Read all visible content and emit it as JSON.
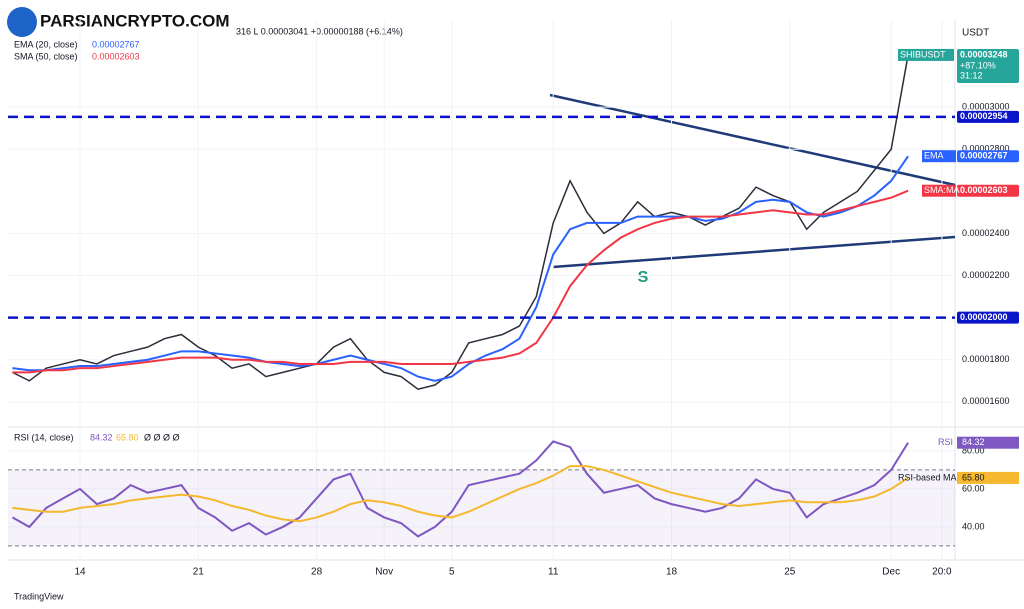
{
  "header": {
    "watermark": "PARSIANCRYPTO.COM",
    "ohlc": "316  L 0.00003041  +0.00000188 (+6.14%)",
    "currency": "USDT",
    "footer": "TradingView",
    "annotation": "S"
  },
  "legend": {
    "rsi_extra": "Ø  Ø  Ø  Ø"
  },
  "chart_data": [
    {
      "type": "line",
      "title": "SHIBUSDT",
      "categories": [
        null,
        null,
        null,
        null,
        "14",
        null,
        null,
        null,
        null,
        null,
        null,
        "21",
        null,
        null,
        null,
        null,
        null,
        null,
        "28",
        null,
        null,
        null,
        "Nov",
        null,
        null,
        null,
        "5",
        null,
        null,
        null,
        null,
        null,
        "11",
        null,
        null,
        null,
        null,
        null,
        null,
        "18",
        null,
        null,
        null,
        null,
        null,
        null,
        "25",
        null,
        null,
        null,
        null,
        null,
        "Dec",
        null,
        null,
        "20:0"
      ],
      "series": [
        {
          "name": "SHIBUSDT",
          "color": "#2a2e39",
          "values": [
            1.74e-05,
            1.7e-05,
            1.76e-05,
            1.78e-05,
            1.8e-05,
            1.78e-05,
            1.82e-05,
            1.84e-05,
            1.86e-05,
            1.9e-05,
            1.92e-05,
            1.86e-05,
            1.82e-05,
            1.76e-05,
            1.78e-05,
            1.72e-05,
            1.74e-05,
            1.76e-05,
            1.78e-05,
            1.86e-05,
            1.9e-05,
            1.8e-05,
            1.74e-05,
            1.72e-05,
            1.66e-05,
            1.68e-05,
            1.74e-05,
            1.88e-05,
            1.9e-05,
            1.92e-05,
            1.96e-05,
            2.1e-05,
            2.45e-05,
            2.65e-05,
            2.5e-05,
            2.4e-05,
            2.45e-05,
            2.55e-05,
            2.48e-05,
            2.5e-05,
            2.48e-05,
            2.44e-05,
            2.48e-05,
            2.52e-05,
            2.62e-05,
            2.58e-05,
            2.55e-05,
            2.42e-05,
            2.5e-05,
            2.55e-05,
            2.6e-05,
            2.7e-05,
            2.8e-05,
            3.248e-05,
            null,
            null
          ]
        },
        {
          "name": "EMA (20, close)",
          "color": "#2962ff",
          "values": [
            1.76e-05,
            1.75e-05,
            1.75e-05,
            1.76e-05,
            1.77e-05,
            1.77e-05,
            1.78e-05,
            1.79e-05,
            1.8e-05,
            1.82e-05,
            1.84e-05,
            1.84e-05,
            1.83e-05,
            1.82e-05,
            1.81e-05,
            1.79e-05,
            1.78e-05,
            1.77e-05,
            1.78e-05,
            1.8e-05,
            1.82e-05,
            1.8e-05,
            1.78e-05,
            1.76e-05,
            1.72e-05,
            1.7e-05,
            1.72e-05,
            1.78e-05,
            1.82e-05,
            1.85e-05,
            1.9e-05,
            2.05e-05,
            2.3e-05,
            2.42e-05,
            2.45e-05,
            2.45e-05,
            2.45e-05,
            2.48e-05,
            2.48e-05,
            2.48e-05,
            2.48e-05,
            2.46e-05,
            2.47e-05,
            2.5e-05,
            2.55e-05,
            2.56e-05,
            2.55e-05,
            2.5e-05,
            2.48e-05,
            2.5e-05,
            2.53e-05,
            2.58e-05,
            2.65e-05,
            2.767e-05,
            null,
            null
          ]
        },
        {
          "name": "SMA (50, close)",
          "color": "#f23645",
          "values": [
            1.74e-05,
            1.74e-05,
            1.75e-05,
            1.75e-05,
            1.76e-05,
            1.76e-05,
            1.77e-05,
            1.78e-05,
            1.79e-05,
            1.8e-05,
            1.81e-05,
            1.81e-05,
            1.81e-05,
            1.8e-05,
            1.8e-05,
            1.79e-05,
            1.79e-05,
            1.78e-05,
            1.78e-05,
            1.78e-05,
            1.79e-05,
            1.79e-05,
            1.79e-05,
            1.78e-05,
            1.78e-05,
            1.78e-05,
            1.78e-05,
            1.79e-05,
            1.8e-05,
            1.81e-05,
            1.83e-05,
            1.88e-05,
            2e-05,
            2.15e-05,
            2.25e-05,
            2.32e-05,
            2.38e-05,
            2.42e-05,
            2.45e-05,
            2.47e-05,
            2.48e-05,
            2.48e-05,
            2.48e-05,
            2.49e-05,
            2.5e-05,
            2.51e-05,
            2.5e-05,
            2.49e-05,
            2.49e-05,
            2.51e-05,
            2.53e-05,
            2.55e-05,
            2.57e-05,
            2.603e-05,
            null,
            null
          ]
        }
      ],
      "ylim": [
        1.49e-05,
        3.414e-05
      ],
      "yticks": [
        {
          "value": 1.6e-05,
          "label": "0.00001600"
        },
        {
          "value": 1.8e-05,
          "label": "0.00001800"
        },
        {
          "value": 2.2e-05,
          "label": "0.00002200"
        },
        {
          "value": 2.4e-05,
          "label": "0.00002400"
        },
        {
          "value": 2.8e-05,
          "label": "0.00002800"
        },
        {
          "value": 3e-05,
          "label": "0.00003000"
        }
      ],
      "levels": [
        {
          "name": "SHIBUSDT",
          "value": 3.248e-05,
          "label": "0.00003248",
          "color": "#26a69a",
          "change": "+87.10%",
          "timer": "31:12"
        },
        {
          "value": 2.954e-05,
          "label": "0.00002954",
          "color": "#0a14c8",
          "dashed": true
        },
        {
          "tag": "EMA",
          "value": 2.767e-05,
          "label": "0.00002767",
          "color": "#2962ff"
        },
        {
          "tag": "SMA:MA",
          "value": 2.603e-05,
          "label": "0.00002603",
          "color": "#f23645"
        },
        {
          "value": 2e-05,
          "label": "0.00002000",
          "color": "#0a14c8",
          "dashed": true
        }
      ]
    },
    {
      "type": "line",
      "title": "RSI",
      "series": [
        {
          "name": "RSI (14, close)",
          "color": "#7e57c2",
          "values": [
            45,
            40,
            50,
            55,
            60,
            52,
            55,
            62,
            58,
            60,
            62,
            50,
            45,
            38,
            42,
            36,
            40,
            45,
            55,
            65,
            68,
            50,
            45,
            42,
            35,
            40,
            48,
            62,
            64,
            66,
            68,
            75,
            85,
            82,
            68,
            58,
            60,
            62,
            55,
            52,
            50,
            48,
            50,
            55,
            65,
            60,
            58,
            45,
            52,
            55,
            58,
            62,
            70,
            84.32,
            null,
            null
          ],
          "value_labels": [
            null,
            null,
            null,
            null,
            null,
            null,
            null,
            null,
            null,
            null,
            null,
            null,
            null,
            null,
            null,
            null,
            null,
            null,
            null,
            null,
            null,
            null,
            null,
            null,
            null,
            null,
            null,
            null,
            null,
            null,
            null,
            null,
            null,
            null,
            null,
            null,
            null,
            null,
            null,
            null,
            null,
            null,
            null,
            null,
            null,
            null,
            null,
            null,
            null,
            null,
            null,
            null,
            null,
            "84.32",
            null,
            null
          ]
        },
        {
          "name": "RSI-based MA",
          "color": "#f5b82e",
          "values": [
            50,
            49,
            48,
            48,
            50,
            51,
            52,
            54,
            55,
            56,
            57,
            56,
            54,
            51,
            49,
            46,
            44,
            43,
            45,
            48,
            52,
            54,
            53,
            51,
            48,
            46,
            45,
            48,
            52,
            56,
            60,
            63,
            67,
            72,
            72,
            70,
            67,
            64,
            61,
            58,
            56,
            54,
            52,
            51,
            52,
            53,
            54,
            53,
            53,
            53,
            54,
            56,
            60,
            65.8,
            null,
            null
          ],
          "value_labels": [
            null,
            null,
            null,
            null,
            null,
            null,
            null,
            null,
            null,
            null,
            null,
            null,
            null,
            null,
            null,
            null,
            null,
            null,
            null,
            null,
            null,
            null,
            null,
            null,
            null,
            null,
            null,
            null,
            null,
            null,
            null,
            null,
            null,
            null,
            null,
            null,
            null,
            null,
            null,
            null,
            null,
            null,
            null,
            null,
            null,
            null,
            null,
            null,
            null,
            null,
            null,
            null,
            null,
            "65.80",
            null,
            null
          ]
        }
      ],
      "ylim": [
        22.6,
        91
      ],
      "yticks": [
        {
          "value": 40,
          "label": "40.00"
        },
        {
          "value": 60,
          "label": "60.00"
        },
        {
          "value": 80,
          "label": "80.00"
        }
      ],
      "band": [
        30,
        70
      ]
    }
  ]
}
